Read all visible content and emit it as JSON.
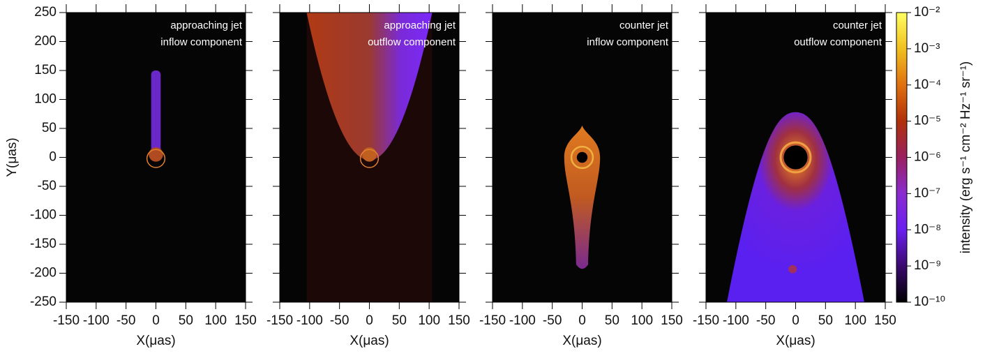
{
  "chart_data": [
    {
      "type": "image",
      "annotation": [
        "approaching jet",
        "inflow component"
      ],
      "xlabel": "X(μas)",
      "ylabel": "Y(μas)",
      "ytick_labels": true,
      "xlim": [
        -150,
        150
      ],
      "xticks": [
        -150,
        -100,
        -50,
        0,
        50,
        100,
        150
      ],
      "ylim": [
        -250,
        250
      ],
      "yticks": [
        -250,
        -200,
        -150,
        -100,
        -50,
        0,
        50,
        100,
        150,
        200,
        250
      ]
    },
    {
      "type": "image",
      "annotation": [
        "approaching jet",
        "outflow component"
      ],
      "xlabel": "X(μas)",
      "ytick_labels": false,
      "xlim": [
        -150,
        150
      ],
      "xticks": [
        -150,
        -100,
        -50,
        0,
        50,
        100,
        150
      ],
      "ylim": [
        -250,
        250
      ],
      "yticks": [
        -250,
        -200,
        -150,
        -100,
        -50,
        0,
        50,
        100,
        150,
        200,
        250
      ]
    },
    {
      "type": "image",
      "annotation": [
        "counter jet",
        "inflow component"
      ],
      "xlabel": "X(μas)",
      "ytick_labels": false,
      "xlim": [
        -150,
        150
      ],
      "xticks": [
        -150,
        -100,
        -50,
        0,
        50,
        100,
        150
      ],
      "ylim": [
        -250,
        250
      ],
      "yticks": [
        -250,
        -200,
        -150,
        -100,
        -50,
        0,
        50,
        100,
        150,
        200,
        250
      ]
    },
    {
      "type": "image",
      "annotation": [
        "counter jet",
        "outflow component"
      ],
      "xlabel": "X(μas)",
      "ytick_labels": false,
      "xlim": [
        -150,
        150
      ],
      "xticks": [
        -150,
        -100,
        -50,
        0,
        50,
        100,
        150
      ],
      "ylim": [
        -250,
        250
      ],
      "yticks": [
        -250,
        -200,
        -150,
        -100,
        -50,
        0,
        50,
        100,
        150,
        200,
        250
      ],
      "colorbar": {
        "label": "intensity (erg s⁻¹ cm⁻² Hz⁻¹ sr⁻¹)",
        "log": true,
        "lim": [
          1e-10,
          0.01
        ],
        "colors": [
          "#000000",
          "#3a0a6e",
          "#6a1ff0",
          "#8a2bd0",
          "#9a2060",
          "#b0300a",
          "#e07010",
          "#f0c020",
          "#ffff60"
        ],
        "ticks": [
          {
            "value": 1e-10,
            "label": "10⁻¹⁰"
          },
          {
            "value": 1e-09,
            "label": "10⁻⁹"
          },
          {
            "value": 1e-08,
            "label": "10⁻⁸"
          },
          {
            "value": 1e-07,
            "label": "10⁻⁷"
          },
          {
            "value": 1e-06,
            "label": "10⁻⁶"
          },
          {
            "value": 1e-05,
            "label": "10⁻⁵"
          },
          {
            "value": 0.0001,
            "label": "10⁻⁴"
          },
          {
            "value": 0.001,
            "label": "10⁻³"
          },
          {
            "value": 0.01,
            "label": "10⁻²"
          }
        ]
      }
    }
  ]
}
